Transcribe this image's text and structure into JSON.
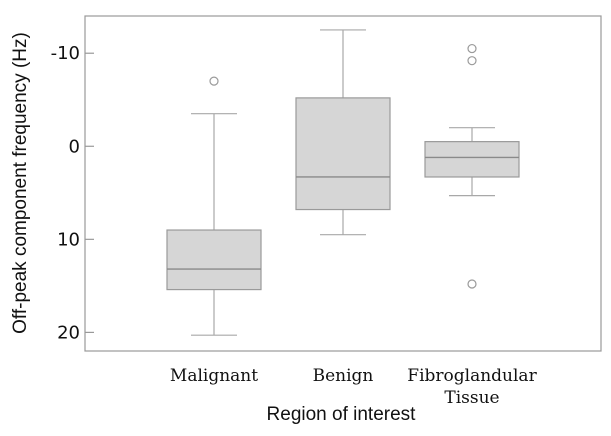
{
  "chart_data": {
    "type": "box",
    "ylabel": "Off-peak component frequency (Hz)",
    "xlabel": "Region of interest",
    "y_axis_inverted": true,
    "ylim": [
      -14,
      22
    ],
    "yticks": [
      -10,
      0,
      10,
      20
    ],
    "ytick_labels": [
      "-10",
      "0",
      "10",
      "20"
    ],
    "categories": [
      [
        "Malignant"
      ],
      [
        "Benign"
      ],
      [
        "Fibroglandular",
        "Tissue"
      ]
    ],
    "boxes": [
      {
        "whisker_low": -3.5,
        "q1": 9.0,
        "median": 13.2,
        "q3": 15.4,
        "whisker_high": 20.3,
        "outliers": [
          -7.0
        ]
      },
      {
        "whisker_low": -12.5,
        "q1": -5.2,
        "median": 3.3,
        "q3": 6.8,
        "whisker_high": 9.5,
        "outliers": []
      },
      {
        "whisker_low": -2.0,
        "q1": -0.5,
        "median": 1.2,
        "q3": 3.3,
        "whisker_high": 5.3,
        "outliers": [
          -10.5,
          -9.2,
          14.8
        ]
      }
    ],
    "grid": false,
    "legend": "none"
  }
}
